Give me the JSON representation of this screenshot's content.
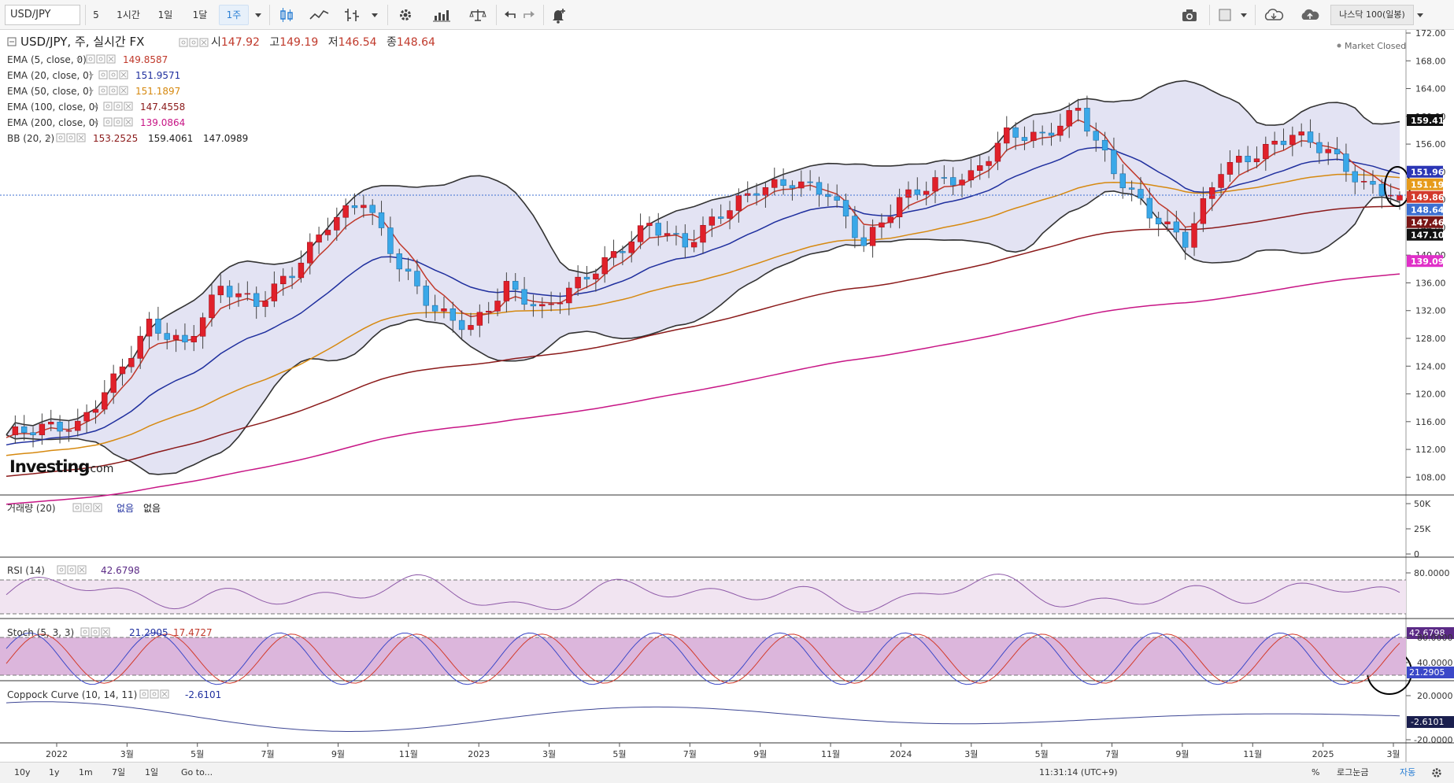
{
  "toolbar": {
    "symbol": "USD/JPY",
    "intervals": [
      "5",
      "1시간",
      "1일",
      "1달",
      "1주"
    ],
    "active_interval": "1주",
    "compare_symbol": "나스닥 100(일봉)"
  },
  "legend": {
    "symbol_title": "USD/JPY, 주, 실시간 FX",
    "ohlc": [
      {
        "label": "시",
        "value": "147.92"
      },
      {
        "label": "고",
        "value": "149.19"
      },
      {
        "label": "저",
        "value": "146.54"
      },
      {
        "label": "종",
        "value": "148.64"
      }
    ],
    "market_status": "Market Closed",
    "indicators": [
      {
        "label": "EMA (5, close, 0)",
        "values": [
          "149.8587"
        ],
        "color": "#c0392b"
      },
      {
        "label": "EMA (20, close, 0)",
        "values": [
          "151.9571"
        ],
        "color": "#1f2f9e"
      },
      {
        "label": "EMA (50, close, 0)",
        "values": [
          "151.1897"
        ],
        "color": "#d68910"
      },
      {
        "label": "EMA (100, close, 0)",
        "values": [
          "147.4558"
        ],
        "color": "#8b1a1a"
      },
      {
        "label": "EMA (200, close, 0)",
        "values": [
          "139.0864"
        ],
        "color": "#c71585"
      },
      {
        "label": "BB (20, 2)",
        "values": [
          "153.2525",
          "159.4061",
          "147.0989"
        ],
        "colors": [
          "#8b1a1a",
          "#222222",
          "#222222"
        ]
      }
    ]
  },
  "brand": {
    "name": "Investing",
    "suffix": ".com"
  },
  "panes": {
    "volume": {
      "label": "거래량 (20)",
      "v1": "없음",
      "v2": "없음",
      "ticks": [
        "50K",
        "25K",
        "0"
      ]
    },
    "rsi": {
      "label": "RSI (14)",
      "value": "42.6798",
      "ticks": [
        "80.0000",
        "40.0000"
      ]
    },
    "stoch": {
      "label": "Stoch (5, 3, 3)",
      "k": "21.2905",
      "d": "17.4727",
      "ticks": [
        "80.0000",
        "40.0000",
        "20.0000"
      ]
    },
    "coppock": {
      "label": "Coppock Curve (10, 14, 11)",
      "value": "-2.6101",
      "ticks": [
        "20.0000",
        "-20.0000"
      ]
    }
  },
  "price_axis": {
    "ticks": [
      "172.00",
      "168.00",
      "164.00",
      "160.00",
      "156.00",
      "152.00",
      "148.00",
      "144.00",
      "140.00",
      "136.00",
      "132.00",
      "128.00",
      "124.00",
      "120.00",
      "116.00",
      "112.00",
      "108.00"
    ],
    "tags": [
      {
        "value": "159.41",
        "bg": "#111111",
        "fg": "#ffffff"
      },
      {
        "value": "151.96",
        "bg": "#2b36b5",
        "fg": "#ffffff"
      },
      {
        "value": "151.19",
        "bg": "#e69a1a",
        "fg": "#ffffff"
      },
      {
        "value": "149.86",
        "bg": "#d33b2c",
        "fg": "#ffffff"
      },
      {
        "value": "148.64",
        "bg": "#3c6fd1",
        "fg": "#ffffff"
      },
      {
        "value": "147.46",
        "bg": "#7a1717",
        "fg": "#ffffff"
      },
      {
        "value": "147.10",
        "bg": "#111111",
        "fg": "#ffffff"
      },
      {
        "value": "139.09",
        "bg": "#e030c8",
        "fg": "#ffffff"
      }
    ]
  },
  "time_axis": {
    "labels": [
      "2022",
      "3월",
      "5월",
      "7월",
      "9월",
      "11월",
      "2023",
      "3월",
      "5월",
      "7월",
      "9월",
      "11월",
      "2024",
      "3월",
      "5월",
      "7월",
      "9월",
      "11월",
      "2025",
      "3월"
    ]
  },
  "footer": {
    "ranges": [
      "10y",
      "1y",
      "1m",
      "7일",
      "1일"
    ],
    "goto": "Go to...",
    "clock": "11:31:14 (UTC+9)",
    "pct": "%",
    "log": "로그눈금",
    "auto": "자동"
  },
  "chart_data": {
    "type": "candlestick",
    "interval": "weekly",
    "symbol": "USD/JPY",
    "ylim": [
      106,
      172
    ],
    "close_series_approx": [
      {
        "date": "2021-12",
        "close": 114.1
      },
      {
        "date": "2022-01",
        "close": 115.2
      },
      {
        "date": "2022-02",
        "close": 115.3
      },
      {
        "date": "2022-03",
        "close": 122.0
      },
      {
        "date": "2022-04",
        "close": 130.0
      },
      {
        "date": "2022-05",
        "close": 127.0
      },
      {
        "date": "2022-06",
        "close": 135.5
      },
      {
        "date": "2022-07",
        "close": 133.0
      },
      {
        "date": "2022-08",
        "close": 137.5
      },
      {
        "date": "2022-09",
        "close": 144.5
      },
      {
        "date": "2022-10",
        "close": 148.0
      },
      {
        "date": "2022-11",
        "close": 138.5
      },
      {
        "date": "2022-12",
        "close": 132.0
      },
      {
        "date": "2023-01",
        "close": 129.5
      },
      {
        "date": "2023-02",
        "close": 135.5
      },
      {
        "date": "2023-03",
        "close": 132.0
      },
      {
        "date": "2023-04",
        "close": 136.0
      },
      {
        "date": "2023-05",
        "close": 140.0
      },
      {
        "date": "2023-06",
        "close": 144.5
      },
      {
        "date": "2023-07",
        "close": 141.5
      },
      {
        "date": "2023-08",
        "close": 146.0
      },
      {
        "date": "2023-09",
        "close": 149.5
      },
      {
        "date": "2023-10",
        "close": 150.5
      },
      {
        "date": "2023-11",
        "close": 149.0
      },
      {
        "date": "2023-12",
        "close": 141.5
      },
      {
        "date": "2024-01",
        "close": 148.0
      },
      {
        "date": "2024-02",
        "close": 150.5
      },
      {
        "date": "2024-03",
        "close": 151.3
      },
      {
        "date": "2024-04",
        "close": 157.5
      },
      {
        "date": "2024-05",
        "close": 157.0
      },
      {
        "date": "2024-06",
        "close": 161.0
      },
      {
        "date": "2024-07",
        "close": 152.0
      },
      {
        "date": "2024-08",
        "close": 146.0
      },
      {
        "date": "2024-09",
        "close": 142.0
      },
      {
        "date": "2024-10",
        "close": 152.5
      },
      {
        "date": "2024-11",
        "close": 154.5
      },
      {
        "date": "2024-12",
        "close": 157.5
      },
      {
        "date": "2025-01",
        "close": 155.0
      },
      {
        "date": "2025-02",
        "close": 150.0
      },
      {
        "date": "2025-03",
        "close": 148.64
      }
    ],
    "last_bar": {
      "open": 147.92,
      "high": 149.19,
      "low": 146.54,
      "close": 148.64
    },
    "overlays": {
      "ema5": 149.8587,
      "ema20": 151.9571,
      "ema50": 151.1897,
      "ema100": 147.4558,
      "ema200": 139.0864,
      "bb_mid": 153.2525,
      "bb_upper": 159.4061,
      "bb_lower": 147.0989
    },
    "indicators": {
      "rsi14": 42.6798,
      "stoch_k": 21.2905,
      "stoch_d": 17.4727,
      "coppock": -2.6101
    }
  }
}
